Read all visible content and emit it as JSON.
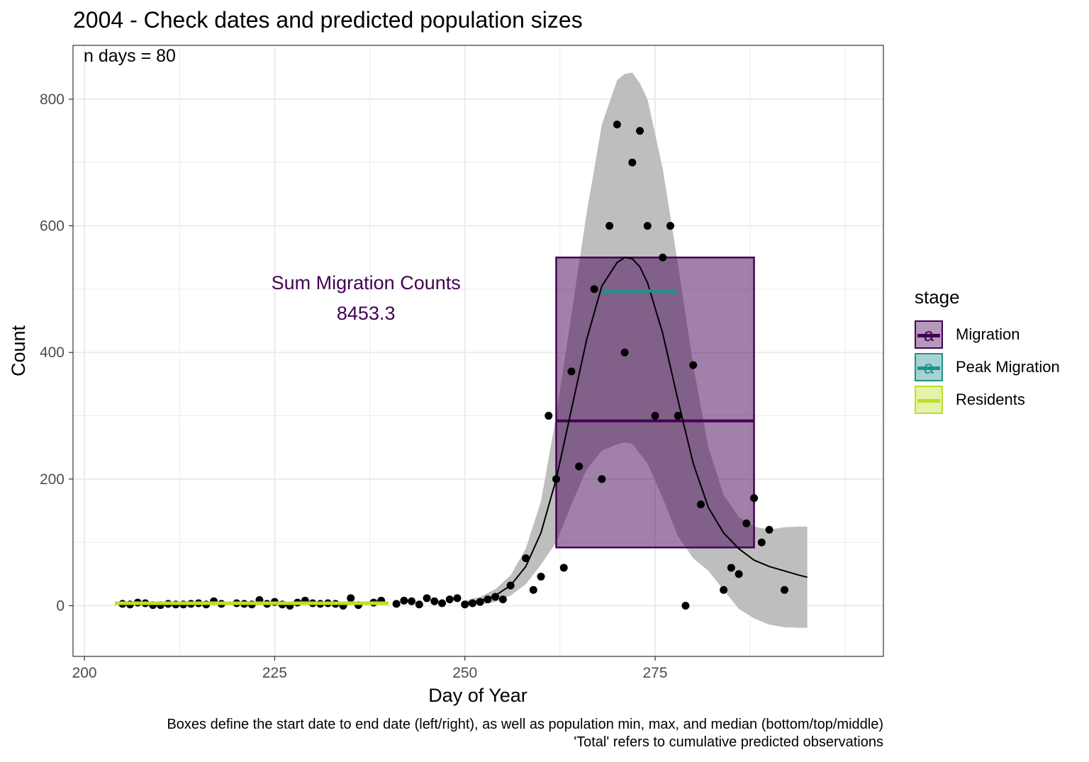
{
  "title": "2004 - Check dates and predicted population sizes",
  "caption": {
    "line1": "Boxes define the start date to end date (left/right), as well as population min, max, and median (bottom/top/middle)",
    "line2": "'Total' refers to cumulative predicted observations"
  },
  "colors": {
    "migration": "#440154",
    "peak_migration": "#21908C",
    "residents": "#BBDF27",
    "ribbon": "#BEBEBE",
    "points": "#000000",
    "grid": "#EBEBEB"
  },
  "legend": {
    "title": "stage",
    "items": [
      {
        "label": "Migration",
        "color": "#440154",
        "glyph": "a"
      },
      {
        "label": "Peak Migration",
        "color": "#21908C",
        "glyph": "a"
      },
      {
        "label": "Residents",
        "color": "#BBDF27",
        "glyph": ""
      }
    ]
  },
  "chart_data": {
    "type": "scatter",
    "xlabel": "Day of Year",
    "ylabel": "Count",
    "xlim": [
      198.5,
      305
    ],
    "ylim": [
      -80,
      885
    ],
    "x_ticks": [
      200,
      225,
      250,
      275
    ],
    "y_ticks": [
      0,
      200,
      400,
      600,
      800
    ],
    "grid": true,
    "legend_position": "right",
    "annotations": {
      "n_days": "n days = 80",
      "sum_label": "Sum Migration Counts",
      "sum_value": "8453.3",
      "sum_x": 237,
      "sum_y": 510
    },
    "points": [
      [
        205,
        3
      ],
      [
        206,
        2
      ],
      [
        207,
        5
      ],
      [
        208,
        4
      ],
      [
        209,
        1
      ],
      [
        210,
        1
      ],
      [
        211,
        3
      ],
      [
        212,
        2
      ],
      [
        213,
        2
      ],
      [
        214,
        3
      ],
      [
        215,
        4
      ],
      [
        216,
        2
      ],
      [
        217,
        7
      ],
      [
        218,
        3
      ],
      [
        220,
        4
      ],
      [
        221,
        3
      ],
      [
        222,
        2
      ],
      [
        223,
        9
      ],
      [
        224,
        3
      ],
      [
        225,
        6
      ],
      [
        226,
        2
      ],
      [
        227,
        0
      ],
      [
        228,
        5
      ],
      [
        229,
        8
      ],
      [
        230,
        4
      ],
      [
        231,
        3
      ],
      [
        232,
        4
      ],
      [
        233,
        3
      ],
      [
        234,
        0
      ],
      [
        235,
        12
      ],
      [
        236,
        1
      ],
      [
        238,
        5
      ],
      [
        239,
        8
      ],
      [
        241,
        3
      ],
      [
        242,
        8
      ],
      [
        243,
        7
      ],
      [
        244,
        2
      ],
      [
        245,
        12
      ],
      [
        246,
        7
      ],
      [
        247,
        4
      ],
      [
        248,
        10
      ],
      [
        249,
        12
      ],
      [
        250,
        2
      ],
      [
        251,
        4
      ],
      [
        252,
        6
      ],
      [
        253,
        10
      ],
      [
        254,
        14
      ],
      [
        255,
        10
      ],
      [
        256,
        32
      ],
      [
        258,
        75
      ],
      [
        259,
        25
      ],
      [
        260,
        46
      ],
      [
        261,
        300
      ],
      [
        262,
        200
      ],
      [
        263,
        60
      ],
      [
        264,
        370
      ],
      [
        265,
        220
      ],
      [
        267,
        500
      ],
      [
        268,
        200
      ],
      [
        269,
        600
      ],
      [
        270,
        760
      ],
      [
        271,
        400
      ],
      [
        272,
        700
      ],
      [
        273,
        750
      ],
      [
        274,
        600
      ],
      [
        275,
        300
      ],
      [
        276,
        550
      ],
      [
        277,
        600
      ],
      [
        278,
        300
      ],
      [
        279,
        0
      ],
      [
        280,
        380
      ],
      [
        281,
        160
      ],
      [
        284,
        25
      ],
      [
        285,
        60
      ],
      [
        286,
        50
      ],
      [
        287,
        130
      ],
      [
        288,
        170
      ],
      [
        289,
        100
      ],
      [
        290,
        120
      ],
      [
        292,
        25
      ]
    ],
    "fit_curve": [
      [
        250,
        4
      ],
      [
        252,
        8
      ],
      [
        254,
        16
      ],
      [
        256,
        32
      ],
      [
        258,
        62
      ],
      [
        260,
        115
      ],
      [
        262,
        200
      ],
      [
        264,
        310
      ],
      [
        266,
        420
      ],
      [
        268,
        505
      ],
      [
        270,
        542
      ],
      [
        271,
        550
      ],
      [
        272,
        548
      ],
      [
        273,
        535
      ],
      [
        274,
        510
      ],
      [
        276,
        430
      ],
      [
        278,
        325
      ],
      [
        280,
        225
      ],
      [
        282,
        155
      ],
      [
        284,
        115
      ],
      [
        286,
        90
      ],
      [
        288,
        72
      ],
      [
        290,
        62
      ],
      [
        292,
        55
      ],
      [
        294,
        48
      ],
      [
        295,
        45
      ]
    ],
    "ribbon": {
      "x": [
        250,
        252,
        254,
        256,
        258,
        260,
        262,
        264,
        266,
        268,
        270,
        271,
        272,
        273,
        274,
        276,
        278,
        280,
        282,
        284,
        286,
        288,
        290,
        292,
        294,
        295
      ],
      "upper": [
        8,
        14,
        26,
        48,
        90,
        165,
        300,
        460,
        620,
        760,
        830,
        840,
        842,
        825,
        800,
        690,
        540,
        380,
        250,
        175,
        140,
        125,
        120,
        124,
        125,
        125
      ],
      "lower": [
        0,
        2,
        6,
        16,
        34,
        65,
        100,
        160,
        215,
        245,
        255,
        258,
        256,
        240,
        225,
        170,
        110,
        75,
        55,
        25,
        -5,
        -20,
        -30,
        -34,
        -35,
        -35
      ]
    },
    "boxes": [
      {
        "stage": "Migration",
        "xmin": 262,
        "xmax": 288,
        "ymin": 92,
        "ymax": 550,
        "median": 292,
        "color": "#440154",
        "fill_opacity": 0.5
      }
    ],
    "segments": [
      {
        "stage": "Peak Migration",
        "x1": 268,
        "x2": 278,
        "y": 497,
        "color": "#21908C"
      },
      {
        "stage": "Residents",
        "x1": 204,
        "x2": 240,
        "y": 4,
        "color": "#BBDF27"
      }
    ]
  }
}
